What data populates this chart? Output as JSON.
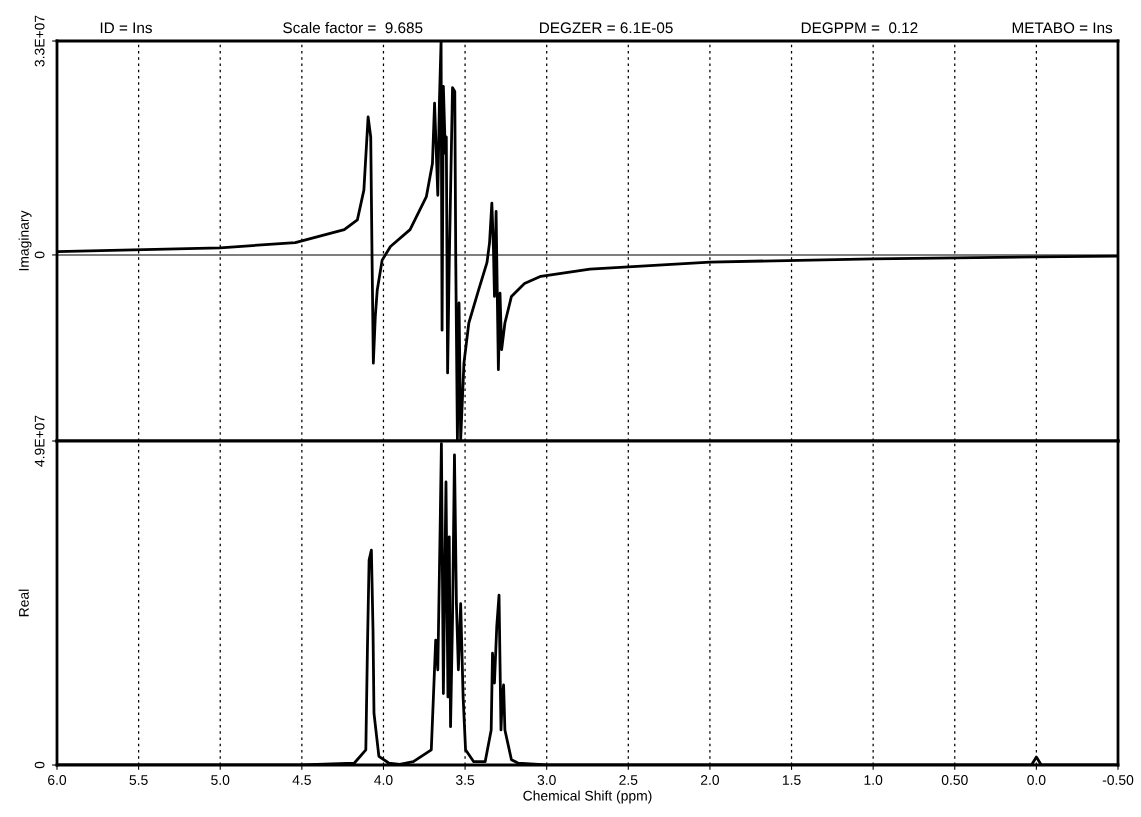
{
  "chart_data": [
    {
      "type": "line",
      "ylabel": "Imaginary",
      "tick_labels": "y",
      "grid": "x",
      "annotations": [
        "ID = Ins",
        "Scale factor =  9.685",
        "DEGZER = 6.1E-05",
        "DEGPPM =  0.12",
        "METABO = Ins"
      ],
      "xlim": [
        6.0,
        -0.5
      ],
      "xticks": [
        6,
        5.5,
        5,
        4.5,
        4,
        3.5,
        3,
        2.5,
        2,
        1.5,
        1,
        0.5,
        0,
        -0.5
      ],
      "ylim": [
        -28700000.0,
        33000000.0
      ],
      "yticks": [
        0,
        {
          "value": 33000000.0,
          "label": "3.3E+07"
        }
      ],
      "ref_lines": [
        {
          "axis": "y",
          "value": 0,
          "color": "#000000"
        }
      ],
      "series": [
        {
          "color": "#000000",
          "x": [
            6.0,
            5.0,
            4.54,
            4.24,
            4.16,
            4.12,
            4.094,
            4.078,
            4.074,
            4.07,
            4.062,
            4.05,
            4.038,
            4.008,
            3.957,
            3.837,
            3.737,
            3.7,
            3.687,
            3.667,
            3.657,
            3.647,
            3.641,
            3.633,
            3.621,
            3.615,
            3.607,
            3.597,
            3.577,
            3.563,
            3.557,
            3.547,
            3.537,
            3.527,
            3.507,
            3.477,
            3.417,
            3.366,
            3.35,
            3.336,
            3.326,
            3.32,
            3.31,
            3.296,
            3.286,
            3.276,
            3.256,
            3.216,
            3.136,
            3.036,
            2.735,
            2.0,
            1.0,
            0.0,
            -0.5
          ],
          "values": [
            500000.0,
            1100000.0,
            1900000.0,
            3900000.0,
            5400000.0,
            10000000.0,
            21300000.0,
            18200000.0,
            9000000.0,
            -200000.0,
            -16700000.0,
            -9500000.0,
            -5400000.0,
            -800000.0,
            1300000.0,
            3900000.0,
            9000000.0,
            14100000.0,
            23400000.0,
            9200000.0,
            23900000.0,
            33000000.0,
            -11600000.0,
            26000000.0,
            15700000.0,
            18200000.0,
            -18200000.0,
            -1200000.0,
            25800000.0,
            25200000.0,
            -1000000.0,
            -28500000.0,
            -7400000.0,
            -28500000.0,
            -16700000.0,
            -10500000.0,
            -5400000.0,
            -1200000.0,
            1900000.0,
            8000000.0,
            800000.0,
            -6400000.0,
            6700000.0,
            -17700000.0,
            -5900000.0,
            -14600000.0,
            -10500000.0,
            -6400000.0,
            -4400000.0,
            -3300000.0,
            -2200000.0,
            -1100000.0,
            -600000.0,
            -300000.0,
            -200000.0
          ]
        }
      ]
    },
    {
      "type": "line",
      "ylabel": "Real",
      "xlabel": "Chemical Shift (ppm)",
      "grid": "x",
      "xlim": [
        6.0,
        -0.5
      ],
      "xticks": [
        {
          "value": 6,
          "label": "6.0"
        },
        5.5,
        {
          "value": 5,
          "label": "5.0"
        },
        4.5,
        {
          "value": 4,
          "label": "4.0"
        },
        3.5,
        {
          "value": 3,
          "label": "3.0"
        },
        2.5,
        {
          "value": 2,
          "label": "2.0"
        },
        1.5,
        {
          "value": 1,
          "label": "1.0"
        },
        {
          "value": 0.5,
          "label": "0.50"
        },
        {
          "value": 0,
          "label": "0.0"
        },
        {
          "value": -0.5,
          "label": "-0.50"
        }
      ],
      "ylim": [
        0,
        49000000.0
      ],
      "yticks": [
        0,
        {
          "value": 49000000.0,
          "label": "4.9E+07"
        }
      ],
      "series": [
        {
          "color": "#000000",
          "x": [
            6.0,
            4.5,
            4.178,
            4.108,
            4.098,
            4.088,
            4.074,
            4.064,
            4.058,
            4.028,
            3.968,
            3.9,
            3.817,
            3.707,
            3.68,
            3.667,
            3.653,
            3.645,
            3.633,
            3.617,
            3.605,
            3.597,
            3.589,
            3.577,
            3.565,
            3.553,
            3.541,
            3.527,
            3.512,
            3.497,
            3.447,
            3.377,
            3.34,
            3.332,
            3.32,
            3.306,
            3.292,
            3.28,
            3.272,
            3.264,
            3.256,
            3.216,
            3.176,
            3.0,
            0.03,
            0.0,
            -0.03,
            -0.5
          ],
          "values": [
            0,
            0,
            300000.0,
            2300000.0,
            17900000.0,
            31000000.0,
            32500000.0,
            20400000.0,
            7800000.0,
            1300000.0,
            300000.0,
            100000.0,
            500000.0,
            2300000.0,
            18900000.0,
            14400000.0,
            35500000.0,
            48600000.0,
            10800000.0,
            42800000.0,
            10300000.0,
            34500000.0,
            5800000.0,
            21900000.0,
            46900000.0,
            24400000.0,
            14400000.0,
            24400000.0,
            10300000.0,
            2300000.0,
            500000.0,
            500000.0,
            5300000.0,
            16900000.0,
            12400000.0,
            20900000.0,
            25700000.0,
            5300000.0,
            10300000.0,
            12100000.0,
            5300000.0,
            800000.0,
            300000.0,
            0,
            0,
            1200000.0,
            0,
            0
          ]
        }
      ]
    }
  ]
}
